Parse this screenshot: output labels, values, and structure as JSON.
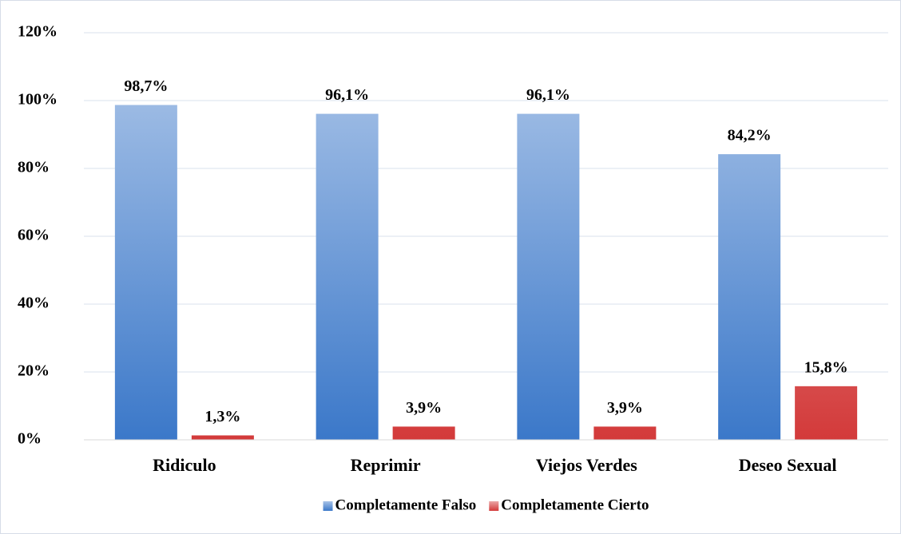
{
  "chart_data": {
    "type": "bar",
    "categories": [
      "Ridiculo",
      "Reprimir",
      "Viejos Verdes",
      "Deseo Sexual"
    ],
    "series": [
      {
        "name": "Completamente Falso",
        "color": "#3b78c9",
        "values": [
          98.7,
          96.1,
          96.1,
          84.2
        ],
        "value_labels": [
          "98,7%",
          "96,1%",
          "96,1%",
          "84,2%"
        ]
      },
      {
        "name": "Completamente Cierto",
        "color": "#d33a3a",
        "values": [
          1.3,
          3.9,
          3.9,
          15.8
        ],
        "value_labels": [
          "1,3%",
          "3,9%",
          "3,9%",
          "15,8%"
        ]
      }
    ],
    "ylim": [
      0,
      120
    ],
    "yticks": [
      {
        "value": 0,
        "label": "0%"
      },
      {
        "value": 20,
        "label": "20%"
      },
      {
        "value": 40,
        "label": "40%"
      },
      {
        "value": 60,
        "label": "60%"
      },
      {
        "value": 80,
        "label": "80%"
      },
      {
        "value": 100,
        "label": "100%"
      },
      {
        "value": 120,
        "label": "120%"
      }
    ],
    "grid": true,
    "legend": "bottom"
  }
}
